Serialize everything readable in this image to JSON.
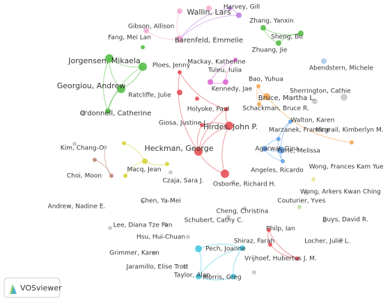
{
  "nodes": [
    {
      "label": "Wallin, Lars"
    },
    {
      "label": "Harvey, Gill"
    },
    {
      "label": "Gibson, Allison"
    },
    {
      "label": "Zhang, Yanxin"
    },
    {
      "label": "Fang, Mei Lan"
    },
    {
      "label": "Barenfeld, Emmelie"
    },
    {
      "label": "Sheng, Bo"
    },
    {
      "label": "Zhuang, Jie"
    },
    {
      "label": "Jorgensen, Mikaela"
    },
    {
      "label": "Mackay, Katherine"
    },
    {
      "label": "Abendstern, Michele"
    },
    {
      "label": "Ploes, Jenny"
    },
    {
      "label": "Georgiou, Andrew"
    },
    {
      "label": "Tuleu, Iulia"
    },
    {
      "label": "Bao, Yuhua"
    },
    {
      "label": "Ratcliffe, Julie"
    },
    {
      "label": "Kennedy, Jae"
    },
    {
      "label": "Sherrington, Cathie"
    },
    {
      "label": "Bruce, Martha L."
    },
    {
      "label": "O'donnell, Catherine"
    },
    {
      "label": "Holyoke, Paul"
    },
    {
      "label": "Schackman, Bruce R."
    },
    {
      "label": "Walton, Karen"
    },
    {
      "label": "Hirdes, John P."
    },
    {
      "label": "Giosa, Justine L."
    },
    {
      "label": "Marzanek, Francine"
    },
    {
      "label": "Mcgrail, Kimberlyn M."
    },
    {
      "label": "Kim, Chang-O"
    },
    {
      "label": "Heckman, George"
    },
    {
      "label": "Agarwal, Gina"
    },
    {
      "label": "Pirrie, Melissa"
    },
    {
      "label": "Wong, Frances Kam Yuet"
    },
    {
      "label": "Choi, Moon"
    },
    {
      "label": "Macq, Jean"
    },
    {
      "label": "Angeles, Ricardo"
    },
    {
      "label": "Czaja, Sara J."
    },
    {
      "label": "Osborne, Richard H."
    },
    {
      "label": "Wong, Arkers Kwan Ching"
    },
    {
      "label": "Chen, Ya-Mei"
    },
    {
      "label": "Couturier, Yves"
    },
    {
      "label": "Andrew, Nadine E."
    },
    {
      "label": "Cheng, Christina"
    },
    {
      "label": "Buys, David R."
    },
    {
      "label": "Schubert, Cathy C."
    },
    {
      "label": "Lee, Diana Tze Fan"
    },
    {
      "label": "Hsu, Hui-Chuan"
    },
    {
      "label": "Philp, Ian"
    },
    {
      "label": "Shiraz, Farah"
    },
    {
      "label": "Locher, Julie L."
    },
    {
      "label": "Pech, Joanne"
    },
    {
      "label": "Grimmer, Karen"
    },
    {
      "label": "Vrijhoef, Hubertus J. M."
    },
    {
      "label": "Jaramillo, Elise Trott"
    },
    {
      "label": "Taylor, Alan"
    },
    {
      "label": "Morris, Greg"
    }
  ],
  "logo": "VOSviewer"
}
